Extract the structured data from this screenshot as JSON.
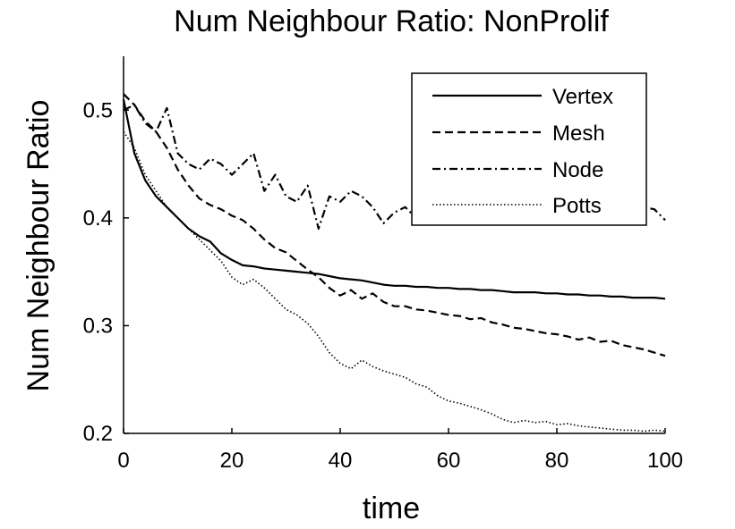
{
  "chart_data": {
    "type": "line",
    "title": "Num Neighbour Ratio: NonProlif",
    "xlabel": "time",
    "ylabel": "Num Neighbour Ratio",
    "xlim": [
      0,
      100
    ],
    "ylim": [
      0.2,
      0.55
    ],
    "xticks": [
      "0",
      "20",
      "40",
      "60",
      "80",
      "100"
    ],
    "yticks": [
      "0.2",
      "0.3",
      "0.4",
      "0.5"
    ],
    "xtick_values": [
      0,
      20,
      40,
      60,
      80,
      100
    ],
    "ytick_values": [
      0.2,
      0.3,
      0.4,
      0.5
    ],
    "grid": false,
    "legend_position": "top-right",
    "x": [
      0,
      2,
      4,
      6,
      8,
      10,
      12,
      14,
      16,
      18,
      20,
      22,
      24,
      26,
      28,
      30,
      32,
      34,
      36,
      38,
      40,
      42,
      44,
      46,
      48,
      50,
      52,
      54,
      56,
      58,
      60,
      62,
      64,
      66,
      68,
      70,
      72,
      74,
      76,
      78,
      80,
      82,
      84,
      86,
      88,
      90,
      92,
      94,
      96,
      98,
      100
    ],
    "series": [
      {
        "name": "Vertex",
        "style": "solid",
        "values": [
          0.51,
          0.46,
          0.435,
          0.42,
          0.41,
          0.4,
          0.39,
          0.383,
          0.378,
          0.367,
          0.361,
          0.356,
          0.355,
          0.353,
          0.352,
          0.351,
          0.35,
          0.349,
          0.348,
          0.346,
          0.344,
          0.343,
          0.342,
          0.34,
          0.338,
          0.337,
          0.337,
          0.336,
          0.336,
          0.335,
          0.335,
          0.334,
          0.334,
          0.333,
          0.333,
          0.332,
          0.331,
          0.331,
          0.331,
          0.33,
          0.33,
          0.329,
          0.329,
          0.328,
          0.328,
          0.327,
          0.327,
          0.326,
          0.326,
          0.326,
          0.325
        ]
      },
      {
        "name": "Mesh",
        "style": "dashed",
        "values": [
          0.515,
          0.505,
          0.49,
          0.48,
          0.465,
          0.445,
          0.43,
          0.418,
          0.412,
          0.408,
          0.402,
          0.398,
          0.39,
          0.38,
          0.372,
          0.368,
          0.36,
          0.352,
          0.345,
          0.335,
          0.328,
          0.333,
          0.325,
          0.33,
          0.322,
          0.318,
          0.318,
          0.315,
          0.314,
          0.312,
          0.31,
          0.309,
          0.306,
          0.307,
          0.303,
          0.301,
          0.298,
          0.297,
          0.295,
          0.293,
          0.292,
          0.29,
          0.287,
          0.289,
          0.285,
          0.286,
          0.282,
          0.28,
          0.278,
          0.275,
          0.272
        ]
      },
      {
        "name": "Node",
        "style": "dashdot",
        "values": [
          0.5,
          0.505,
          0.488,
          0.48,
          0.502,
          0.46,
          0.45,
          0.445,
          0.455,
          0.45,
          0.44,
          0.45,
          0.46,
          0.425,
          0.44,
          0.42,
          0.415,
          0.43,
          0.39,
          0.42,
          0.415,
          0.425,
          0.42,
          0.41,
          0.395,
          0.405,
          0.41,
          0.4,
          0.41,
          0.415,
          0.405,
          0.41,
          0.412,
          0.4,
          0.41,
          0.408,
          0.405,
          0.415,
          0.41,
          0.4,
          0.405,
          0.41,
          0.4,
          0.405,
          0.41,
          0.402,
          0.41,
          0.405,
          0.41,
          0.408,
          0.398
        ]
      },
      {
        "name": "Potts",
        "style": "dotted",
        "values": [
          0.48,
          0.465,
          0.44,
          0.425,
          0.41,
          0.4,
          0.39,
          0.38,
          0.37,
          0.36,
          0.345,
          0.338,
          0.343,
          0.335,
          0.325,
          0.315,
          0.31,
          0.302,
          0.29,
          0.275,
          0.265,
          0.26,
          0.268,
          0.262,
          0.258,
          0.255,
          0.252,
          0.246,
          0.243,
          0.235,
          0.23,
          0.228,
          0.225,
          0.222,
          0.218,
          0.213,
          0.21,
          0.212,
          0.21,
          0.211,
          0.208,
          0.209,
          0.207,
          0.206,
          0.205,
          0.204,
          0.203,
          0.203,
          0.202,
          0.203,
          0.202
        ]
      }
    ]
  }
}
